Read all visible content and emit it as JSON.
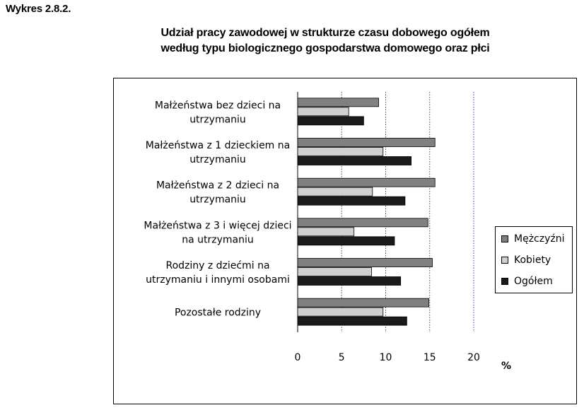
{
  "figure_label": "Wykres 2.8.2.",
  "title_line1": "Udział pracy zawodowej w strukturze czasu dobowego ogółem",
  "title_line2": "według typu biologicznego gospodarstwa domowego oraz płci",
  "chart_data": {
    "type": "bar",
    "orientation": "horizontal",
    "categories": [
      [
        "Małżeństwa  bez dzieci na",
        "utrzymaniu"
      ],
      [
        "Małżeństwa  z 1 dzieckiem na",
        "utrzymaniu"
      ],
      [
        "Małżeństwa  z 2 dzieci na",
        "utrzymaniu"
      ],
      [
        "Małżeństwa  z 3  i więcej dzieci",
        "na utrzymaniu"
      ],
      [
        "Rodziny z dziećmi na",
        "utrzymaniu  i innymi osobami"
      ],
      [
        "Pozostałe rodziny"
      ]
    ],
    "series": [
      {
        "name": "Mężczyźni",
        "color": "#808080",
        "values": [
          9.2,
          15.6,
          15.6,
          14.8,
          15.3,
          14.9
        ]
      },
      {
        "name": "Kobiety",
        "color": "#d0d0d0",
        "values": [
          5.8,
          9.7,
          8.5,
          6.4,
          8.4,
          9.7
        ]
      },
      {
        "name": "Ogółem",
        "color": "#1a1a1a",
        "values": [
          7.5,
          12.9,
          12.2,
          11.0,
          11.7,
          12.4
        ]
      }
    ],
    "xlim": [
      0,
      20
    ],
    "xticks": [
      0,
      5,
      10,
      15,
      20
    ],
    "xlabel": "%",
    "grid": "vertical dotted",
    "legend_position": "right"
  }
}
